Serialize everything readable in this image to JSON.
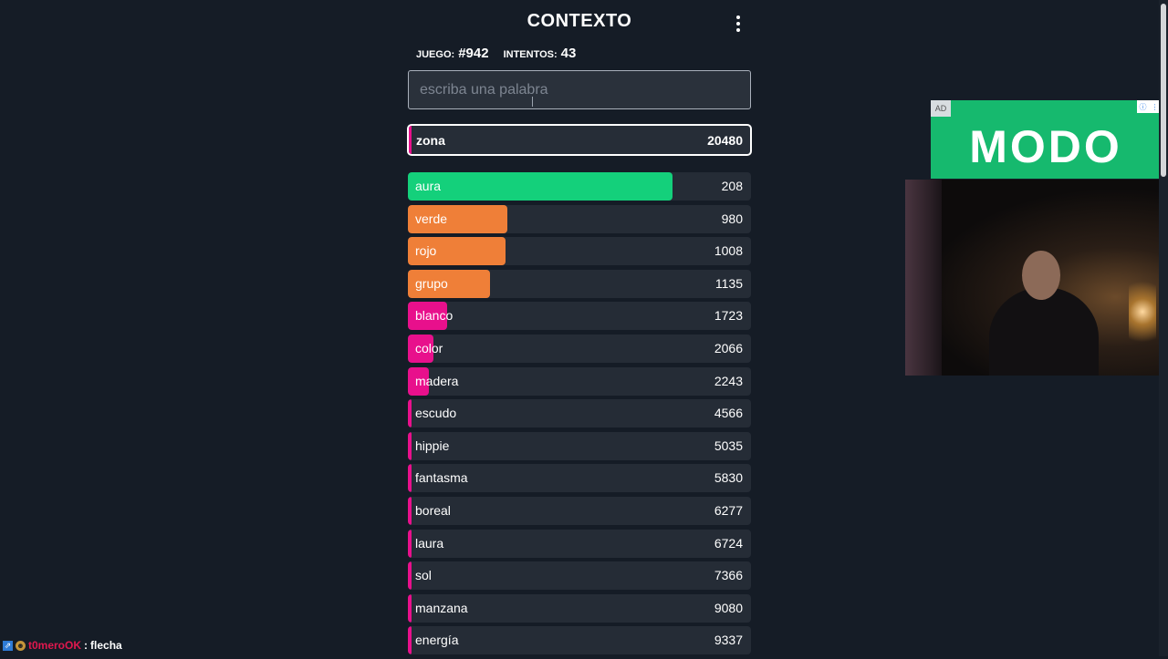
{
  "header": {
    "title": "CONTEXTO"
  },
  "stats": {
    "game_label": "JUEGO:",
    "game_number": "#942",
    "attempts_label": "INTENTOS:",
    "attempts": "43"
  },
  "search": {
    "placeholder": "escriba una palabra",
    "value": ""
  },
  "current_guess": {
    "word": "zona",
    "rank": "20480"
  },
  "colors": {
    "green": "#14d07b",
    "orange": "#ef7f38",
    "pink": "#e8108c",
    "bg": "#151c26"
  },
  "guesses": [
    {
      "word": "aura",
      "rank": "208",
      "fill": 0.77,
      "color": "#14d07b"
    },
    {
      "word": "verde",
      "rank": "980",
      "fill": 0.29,
      "color": "#ef7f38"
    },
    {
      "word": "rojo",
      "rank": "1008",
      "fill": 0.285,
      "color": "#ef7f38"
    },
    {
      "word": "grupo",
      "rank": "1135",
      "fill": 0.24,
      "color": "#ef7f38"
    },
    {
      "word": "blanco",
      "rank": "1723",
      "fill": 0.115,
      "color": "#e8108c"
    },
    {
      "word": "color",
      "rank": "2066",
      "fill": 0.075,
      "color": "#e8108c"
    },
    {
      "word": "madera",
      "rank": "2243",
      "fill": 0.06,
      "color": "#e8108c"
    },
    {
      "word": "escudo",
      "rank": "4566",
      "fill": 0.01,
      "color": "#e8108c"
    },
    {
      "word": "hippie",
      "rank": "5035",
      "fill": 0.01,
      "color": "#e8108c"
    },
    {
      "word": "fantasma",
      "rank": "5830",
      "fill": 0.01,
      "color": "#e8108c"
    },
    {
      "word": "boreal",
      "rank": "6277",
      "fill": 0.01,
      "color": "#e8108c"
    },
    {
      "word": "laura",
      "rank": "6724",
      "fill": 0.01,
      "color": "#e8108c"
    },
    {
      "word": "sol",
      "rank": "7366",
      "fill": 0.01,
      "color": "#e8108c"
    },
    {
      "word": "manzana",
      "rank": "9080",
      "fill": 0.01,
      "color": "#e8108c"
    },
    {
      "word": "energía",
      "rank": "9337",
      "fill": 0.01,
      "color": "#e8108c"
    }
  ],
  "ad": {
    "label": "AD",
    "brand": "MODO",
    "info_icon": "info-icon",
    "close_icon": "close-icon"
  },
  "chat": {
    "user": "t0meroOK",
    "separator": ":",
    "message": "flecha",
    "icons": [
      "badge-icon",
      "emote-icon"
    ]
  }
}
